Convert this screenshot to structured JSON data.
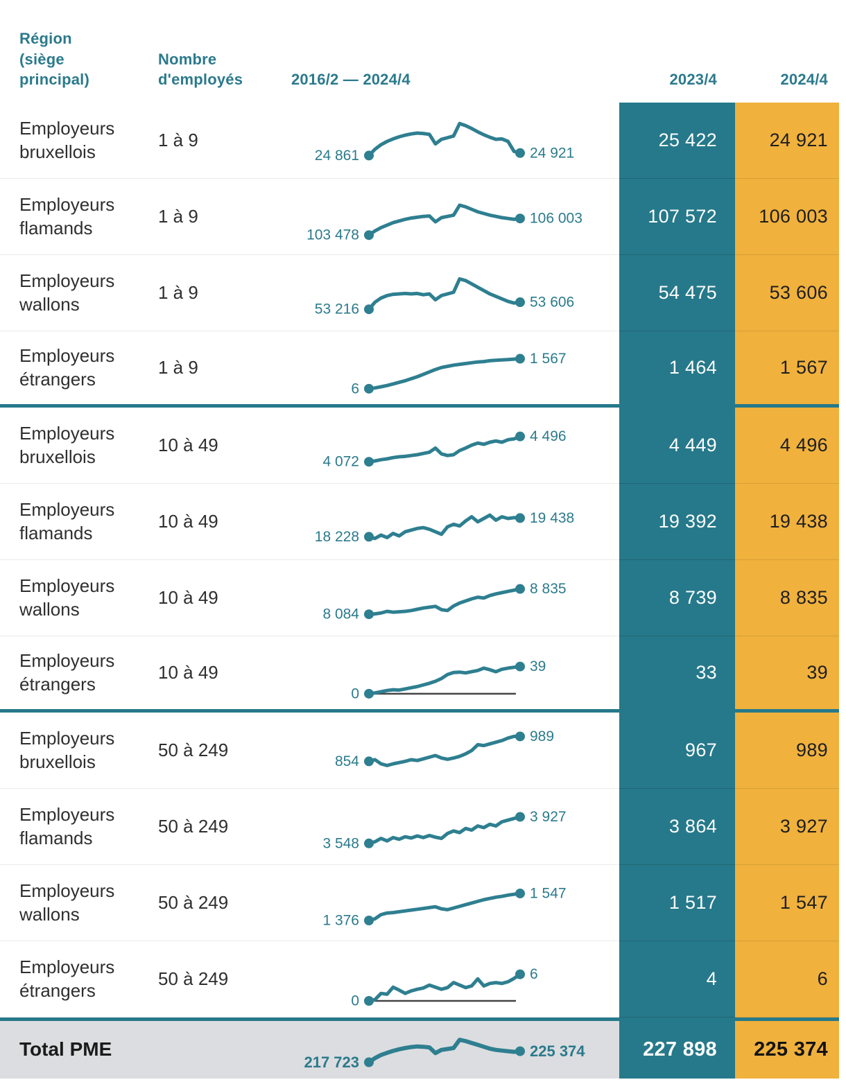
{
  "header": {
    "col_region": "Région\n(siège\nprincipal)",
    "col_employees": "Nombre\nd'employés",
    "col_trend": "2016/2 — 2024/4",
    "col_2023": "2023/4",
    "col_2024": "2024/4"
  },
  "colors": {
    "teal": "#26798A",
    "teal_line": "#2E7F90",
    "orange": "#F0B13D",
    "total_bg": "#DCDDE0",
    "zero_line": "#444444",
    "spark_label": "#2B7A8C"
  },
  "rows": [
    {
      "region": "Employeurs bruxellois",
      "employees": "1 à 9",
      "start_label": "24 861",
      "end_label": "24 921",
      "val_2023": "25 422",
      "val_2024": "24 921",
      "zero_line": false,
      "spark": [
        0.18,
        0.33,
        0.44,
        0.52,
        0.58,
        0.63,
        0.67,
        0.7,
        0.72,
        0.71,
        0.69,
        0.46,
        0.57,
        0.61,
        0.65,
        0.95,
        0.9,
        0.83,
        0.75,
        0.68,
        0.62,
        0.57,
        0.58,
        0.52,
        0.28,
        0.24
      ]
    },
    {
      "region": "Employeurs flamands",
      "employees": "1 à 9",
      "start_label": "103 478",
      "end_label": "106 003",
      "val_2023": "107 572",
      "val_2024": "106 003",
      "zero_line": false,
      "spark": [
        0.1,
        0.2,
        0.28,
        0.34,
        0.4,
        0.44,
        0.48,
        0.51,
        0.53,
        0.55,
        0.56,
        0.42,
        0.52,
        0.55,
        0.58,
        0.82,
        0.78,
        0.72,
        0.66,
        0.62,
        0.58,
        0.55,
        0.52,
        0.5,
        0.48,
        0.5
      ]
    },
    {
      "region": "Employeurs wallons",
      "employees": "1 à 9",
      "start_label": "53 216",
      "end_label": "53 606",
      "val_2023": "54 475",
      "val_2024": "53 606",
      "zero_line": false,
      "spark": [
        0.15,
        0.32,
        0.42,
        0.48,
        0.51,
        0.52,
        0.53,
        0.52,
        0.53,
        0.5,
        0.52,
        0.38,
        0.48,
        0.52,
        0.56,
        0.88,
        0.84,
        0.76,
        0.68,
        0.6,
        0.52,
        0.46,
        0.4,
        0.34,
        0.3,
        0.32
      ]
    },
    {
      "region": "Employeurs étrangers",
      "employees": "1 à 9",
      "start_label": "6",
      "end_label": "1 567",
      "val_2023": "1 464",
      "val_2024": "1 567",
      "zero_line": false,
      "spark": [
        0.02,
        0.04,
        0.07,
        0.1,
        0.14,
        0.18,
        0.22,
        0.27,
        0.32,
        0.38,
        0.44,
        0.5,
        0.55,
        0.58,
        0.61,
        0.63,
        0.65,
        0.67,
        0.69,
        0.7,
        0.72,
        0.73,
        0.74,
        0.75,
        0.76,
        0.77
      ]
    },
    {
      "region": "Employeurs bruxellois",
      "employees": "10 à 49",
      "start_label": "4 072",
      "end_label": "4 496",
      "val_2023": "4 449",
      "val_2024": "4 496",
      "zero_line": false,
      "spark": [
        0.15,
        0.17,
        0.2,
        0.22,
        0.25,
        0.27,
        0.28,
        0.3,
        0.32,
        0.35,
        0.38,
        0.48,
        0.34,
        0.3,
        0.32,
        0.42,
        0.48,
        0.55,
        0.6,
        0.57,
        0.62,
        0.65,
        0.62,
        0.68,
        0.7,
        0.76
      ]
    },
    {
      "region": "Employeurs flamands",
      "employees": "10 à 49",
      "start_label": "18 228",
      "end_label": "19 438",
      "val_2023": "19 392",
      "val_2024": "19 438",
      "zero_line": false,
      "spark": [
        0.18,
        0.14,
        0.22,
        0.16,
        0.26,
        0.2,
        0.3,
        0.34,
        0.38,
        0.4,
        0.36,
        0.3,
        0.24,
        0.42,
        0.48,
        0.44,
        0.56,
        0.66,
        0.54,
        0.62,
        0.7,
        0.58,
        0.66,
        0.62,
        0.64,
        0.63
      ]
    },
    {
      "region": "Employeurs wallons",
      "employees": "10 à 49",
      "start_label": "8 084",
      "end_label": "8 835",
      "val_2023": "8 739",
      "val_2024": "8 835",
      "zero_line": false,
      "spark": [
        0.15,
        0.16,
        0.18,
        0.22,
        0.2,
        0.21,
        0.22,
        0.24,
        0.27,
        0.3,
        0.32,
        0.34,
        0.26,
        0.24,
        0.35,
        0.42,
        0.47,
        0.52,
        0.56,
        0.54,
        0.6,
        0.64,
        0.67,
        0.7,
        0.73,
        0.76
      ]
    },
    {
      "region": "Employeurs étrangers",
      "employees": "10 à 49",
      "start_label": "0",
      "end_label": "39",
      "val_2023": "33",
      "val_2024": "39",
      "zero_line": true,
      "spark": [
        0.02,
        0.04,
        0.07,
        0.1,
        0.12,
        0.11,
        0.14,
        0.17,
        0.2,
        0.24,
        0.28,
        0.33,
        0.4,
        0.5,
        0.55,
        0.56,
        0.54,
        0.57,
        0.6,
        0.66,
        0.62,
        0.57,
        0.63,
        0.66,
        0.68,
        0.7
      ]
    },
    {
      "region": "Employeurs bruxellois",
      "employees": "50 à 249",
      "start_label": "854",
      "end_label": "989",
      "val_2023": "967",
      "val_2024": "989",
      "zero_line": false,
      "spark": [
        0.28,
        0.32,
        0.22,
        0.18,
        0.22,
        0.25,
        0.28,
        0.32,
        0.3,
        0.34,
        0.38,
        0.42,
        0.36,
        0.33,
        0.36,
        0.4,
        0.46,
        0.54,
        0.68,
        0.66,
        0.7,
        0.74,
        0.78,
        0.84,
        0.88,
        0.88
      ]
    },
    {
      "region": "Employeurs flamands",
      "employees": "50 à 249",
      "start_label": "3 548",
      "end_label": "3 927",
      "val_2023": "3 864",
      "val_2024": "3 927",
      "zero_line": false,
      "spark": [
        0.14,
        0.18,
        0.26,
        0.2,
        0.28,
        0.24,
        0.3,
        0.27,
        0.32,
        0.28,
        0.33,
        0.29,
        0.26,
        0.38,
        0.44,
        0.4,
        0.5,
        0.46,
        0.56,
        0.52,
        0.6,
        0.56,
        0.66,
        0.7,
        0.74,
        0.78
      ]
    },
    {
      "region": "Employeurs wallons",
      "employees": "50 à 249",
      "start_label": "1 376",
      "end_label": "1 547",
      "val_2023": "1 517",
      "val_2024": "1 547",
      "zero_line": false,
      "spark": [
        0.12,
        0.16,
        0.26,
        0.3,
        0.31,
        0.33,
        0.35,
        0.37,
        0.39,
        0.41,
        0.43,
        0.45,
        0.4,
        0.38,
        0.42,
        0.46,
        0.5,
        0.54,
        0.58,
        0.62,
        0.65,
        0.68,
        0.7,
        0.73,
        0.75,
        0.77
      ]
    },
    {
      "region": "Employeurs étrangers",
      "employees": "50 à 249",
      "start_label": "0",
      "end_label": "6",
      "val_2023": "4",
      "val_2024": "6",
      "zero_line": true,
      "spark": [
        0.02,
        0.05,
        0.2,
        0.18,
        0.35,
        0.28,
        0.2,
        0.26,
        0.3,
        0.33,
        0.4,
        0.35,
        0.3,
        0.34,
        0.46,
        0.4,
        0.34,
        0.38,
        0.55,
        0.38,
        0.44,
        0.46,
        0.44,
        0.48,
        0.56,
        0.66
      ]
    }
  ],
  "total": {
    "label": "Total PME",
    "start_label": "217 723",
    "end_label": "225 374",
    "val_2023": "227 898",
    "val_2024": "225 374",
    "zero_line": false,
    "spark": [
      0.15,
      0.28,
      0.38,
      0.45,
      0.51,
      0.56,
      0.6,
      0.63,
      0.65,
      0.64,
      0.62,
      0.44,
      0.54,
      0.57,
      0.6,
      0.86,
      0.82,
      0.76,
      0.7,
      0.64,
      0.58,
      0.54,
      0.52,
      0.5,
      0.48,
      0.5
    ]
  },
  "chart_data": {
    "type": "line",
    "subtype": "sparkline-table",
    "x_range": [
      "2016/2",
      "2024/4"
    ],
    "legend_position": "none",
    "grid": false,
    "series": [
      {
        "name": "Employeurs bruxellois 1 à 9",
        "start": 24861,
        "end": 24921,
        "y_2023_4": 25422,
        "y_2024_4": 24921
      },
      {
        "name": "Employeurs flamands 1 à 9",
        "start": 103478,
        "end": 106003,
        "y_2023_4": 107572,
        "y_2024_4": 106003
      },
      {
        "name": "Employeurs wallons 1 à 9",
        "start": 53216,
        "end": 53606,
        "y_2023_4": 54475,
        "y_2024_4": 53606
      },
      {
        "name": "Employeurs étrangers 1 à 9",
        "start": 6,
        "end": 1567,
        "y_2023_4": 1464,
        "y_2024_4": 1567
      },
      {
        "name": "Employeurs bruxellois 10 à 49",
        "start": 4072,
        "end": 4496,
        "y_2023_4": 4449,
        "y_2024_4": 4496
      },
      {
        "name": "Employeurs flamands 10 à 49",
        "start": 18228,
        "end": 19438,
        "y_2023_4": 19392,
        "y_2024_4": 19438
      },
      {
        "name": "Employeurs wallons 10 à 49",
        "start": 8084,
        "end": 8835,
        "y_2023_4": 8739,
        "y_2024_4": 8835
      },
      {
        "name": "Employeurs étrangers 10 à 49",
        "start": 0,
        "end": 39,
        "y_2023_4": 33,
        "y_2024_4": 39
      },
      {
        "name": "Employeurs bruxellois 50 à 249",
        "start": 854,
        "end": 989,
        "y_2023_4": 967,
        "y_2024_4": 989
      },
      {
        "name": "Employeurs flamands 50 à 249",
        "start": 3548,
        "end": 3927,
        "y_2023_4": 3864,
        "y_2024_4": 3927
      },
      {
        "name": "Employeurs wallons 50 à 249",
        "start": 1376,
        "end": 1547,
        "y_2023_4": 1517,
        "y_2024_4": 1547
      },
      {
        "name": "Employeurs étrangers 50 à 249",
        "start": 0,
        "end": 6,
        "y_2023_4": 4,
        "y_2024_4": 6
      },
      {
        "name": "Total PME",
        "start": 217723,
        "end": 225374,
        "y_2023_4": 227898,
        "y_2024_4": 225374
      }
    ]
  }
}
